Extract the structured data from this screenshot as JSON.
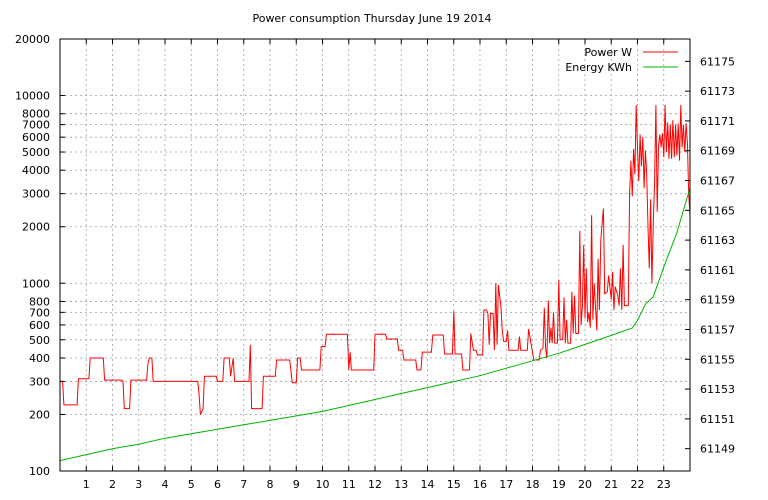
{
  "chart_data": {
    "type": "line",
    "title": "Power consumption Thursday June 19 2014",
    "xlabel": "",
    "ylabel": "",
    "grid": true,
    "legend_position": "top-right",
    "x_axis": {
      "range": [
        0,
        24
      ],
      "ticks": [
        1,
        2,
        3,
        4,
        5,
        6,
        7,
        8,
        9,
        10,
        11,
        12,
        13,
        14,
        15,
        16,
        17,
        18,
        19,
        20,
        21,
        22,
        23
      ]
    },
    "y_left": {
      "scale": "log",
      "range": [
        100,
        20000
      ],
      "ticks": [
        100,
        200,
        300,
        400,
        500,
        600,
        700,
        800,
        1000,
        2000,
        3000,
        4000,
        5000,
        6000,
        7000,
        8000,
        10000,
        20000
      ]
    },
    "y_right": {
      "scale": "linear",
      "range": [
        61147.5,
        61176.5
      ],
      "ticks": [
        61149,
        61151,
        61153,
        61155,
        61157,
        61159,
        61161,
        61163,
        61165,
        61167,
        61169,
        61171,
        61173,
        61175
      ]
    },
    "series": [
      {
        "name": "Power W",
        "axis": "left",
        "color": "#ff0000",
        "points": [
          [
            0,
            300
          ],
          [
            0.1,
            300
          ],
          [
            0.15,
            225
          ],
          [
            0.65,
            225
          ],
          [
            0.7,
            310
          ],
          [
            1.1,
            310
          ],
          [
            1.15,
            400
          ],
          [
            1.65,
            400
          ],
          [
            1.7,
            305
          ],
          [
            2.35,
            305
          ],
          [
            2.4,
            300
          ],
          [
            2.45,
            215
          ],
          [
            2.65,
            215
          ],
          [
            2.7,
            305
          ],
          [
            3.3,
            305
          ],
          [
            3.35,
            370
          ],
          [
            3.4,
            400
          ],
          [
            3.5,
            400
          ],
          [
            3.55,
            300
          ],
          [
            5.25,
            300
          ],
          [
            5.3,
            255
          ],
          [
            5.35,
            200
          ],
          [
            5.45,
            215
          ],
          [
            5.5,
            320
          ],
          [
            5.95,
            320
          ],
          [
            6.0,
            300
          ],
          [
            6.2,
            300
          ],
          [
            6.25,
            400
          ],
          [
            6.45,
            400
          ],
          [
            6.5,
            320
          ],
          [
            6.6,
            400
          ],
          [
            6.65,
            300
          ],
          [
            7.2,
            300
          ],
          [
            7.25,
            470
          ],
          [
            7.3,
            215
          ],
          [
            7.7,
            215
          ],
          [
            7.75,
            320
          ],
          [
            8.2,
            320
          ],
          [
            8.25,
            390
          ],
          [
            8.75,
            390
          ],
          [
            8.8,
            340
          ],
          [
            8.85,
            295
          ],
          [
            9.0,
            295
          ],
          [
            9.05,
            400
          ],
          [
            9.15,
            400
          ],
          [
            9.2,
            345
          ],
          [
            9.9,
            345
          ],
          [
            9.95,
            460
          ],
          [
            10.1,
            460
          ],
          [
            10.15,
            535
          ],
          [
            10.95,
            535
          ],
          [
            11.0,
            345
          ],
          [
            11.05,
            430
          ],
          [
            11.1,
            345
          ],
          [
            11.95,
            345
          ],
          [
            12.0,
            535
          ],
          [
            12.4,
            535
          ],
          [
            12.45,
            505
          ],
          [
            12.85,
            505
          ],
          [
            12.9,
            440
          ],
          [
            13.05,
            440
          ],
          [
            13.1,
            390
          ],
          [
            13.55,
            390
          ],
          [
            13.6,
            345
          ],
          [
            13.75,
            345
          ],
          [
            13.8,
            430
          ],
          [
            14.15,
            430
          ],
          [
            14.2,
            530
          ],
          [
            14.6,
            530
          ],
          [
            14.65,
            420
          ],
          [
            14.95,
            420
          ],
          [
            15.0,
            710
          ],
          [
            15.05,
            420
          ],
          [
            15.3,
            420
          ],
          [
            15.35,
            345
          ],
          [
            15.6,
            345
          ],
          [
            15.65,
            540
          ],
          [
            15.75,
            440
          ],
          [
            15.85,
            440
          ],
          [
            15.9,
            415
          ],
          [
            16.1,
            415
          ],
          [
            16.15,
            720
          ],
          [
            16.25,
            720
          ],
          [
            16.3,
            690
          ],
          [
            16.35,
            470
          ],
          [
            16.4,
            690
          ],
          [
            16.5,
            690
          ],
          [
            16.55,
            440
          ],
          [
            16.6,
            1000
          ],
          [
            16.65,
            470
          ],
          [
            16.7,
            980
          ],
          [
            16.8,
            740
          ],
          [
            16.85,
            560
          ],
          [
            16.9,
            490
          ],
          [
            17.0,
            490
          ],
          [
            17.05,
            560
          ],
          [
            17.1,
            440
          ],
          [
            17.45,
            440
          ],
          [
            17.5,
            520
          ],
          [
            17.55,
            440
          ],
          [
            17.8,
            440
          ],
          [
            17.85,
            570
          ],
          [
            17.95,
            470
          ],
          [
            18.05,
            390
          ],
          [
            18.25,
            390
          ],
          [
            18.3,
            440
          ],
          [
            18.4,
            450
          ],
          [
            18.45,
            740
          ],
          [
            18.5,
            450
          ],
          [
            18.55,
            400
          ],
          [
            18.6,
            810
          ],
          [
            18.65,
            480
          ],
          [
            18.7,
            580
          ],
          [
            18.75,
            480
          ],
          [
            18.8,
            700
          ],
          [
            18.85,
            480
          ],
          [
            18.95,
            480
          ],
          [
            19.0,
            1040
          ],
          [
            19.05,
            500
          ],
          [
            19.15,
            500
          ],
          [
            19.2,
            840
          ],
          [
            19.25,
            480
          ],
          [
            19.3,
            640
          ],
          [
            19.35,
            480
          ],
          [
            19.45,
            480
          ],
          [
            19.5,
            900
          ],
          [
            19.55,
            540
          ],
          [
            19.6,
            860
          ],
          [
            19.65,
            540
          ],
          [
            19.75,
            540
          ],
          [
            19.8,
            1900
          ],
          [
            19.85,
            600
          ],
          [
            19.9,
            760
          ],
          [
            19.95,
            1600
          ],
          [
            20.0,
            650
          ],
          [
            20.05,
            1200
          ],
          [
            20.1,
            620
          ],
          [
            20.15,
            700
          ],
          [
            20.2,
            580
          ],
          [
            20.25,
            2300
          ],
          [
            20.3,
            640
          ],
          [
            20.35,
            1000
          ],
          [
            20.45,
            560
          ],
          [
            20.5,
            1350
          ],
          [
            20.55,
            720
          ],
          [
            20.6,
            1700
          ],
          [
            20.7,
            2500
          ],
          [
            20.75,
            880
          ],
          [
            20.85,
            900
          ],
          [
            20.9,
            1100
          ],
          [
            21.0,
            820
          ],
          [
            21.05,
            1150
          ],
          [
            21.1,
            720
          ],
          [
            21.15,
            960
          ],
          [
            21.25,
            860
          ],
          [
            21.3,
            760
          ],
          [
            21.35,
            1200
          ],
          [
            21.4,
            720
          ],
          [
            21.45,
            1600
          ],
          [
            21.5,
            760
          ],
          [
            21.65,
            760
          ],
          [
            21.7,
            3000
          ],
          [
            21.75,
            4500
          ],
          [
            21.8,
            2900
          ],
          [
            21.85,
            5200
          ],
          [
            21.9,
            3800
          ],
          [
            21.95,
            8900
          ],
          [
            22.0,
            5200
          ],
          [
            22.05,
            3500
          ],
          [
            22.1,
            6200
          ],
          [
            22.15,
            4200
          ],
          [
            22.2,
            6000
          ],
          [
            22.25,
            3200
          ],
          [
            22.3,
            5100
          ],
          [
            22.35,
            3800
          ],
          [
            22.4,
            2000
          ],
          [
            22.45,
            1200
          ],
          [
            22.5,
            2800
          ],
          [
            22.55,
            1000
          ],
          [
            22.6,
            2100
          ],
          [
            22.65,
            3500
          ],
          [
            22.7,
            8900
          ],
          [
            22.75,
            2400
          ],
          [
            22.8,
            5300
          ],
          [
            22.85,
            6200
          ],
          [
            22.9,
            5300
          ],
          [
            22.95,
            6300
          ],
          [
            23.0,
            4700
          ],
          [
            23.05,
            8900
          ],
          [
            23.1,
            5000
          ],
          [
            23.15,
            7200
          ],
          [
            23.2,
            4600
          ],
          [
            23.25,
            7000
          ],
          [
            23.3,
            4600
          ],
          [
            23.35,
            7400
          ],
          [
            23.4,
            4700
          ],
          [
            23.45,
            7000
          ],
          [
            23.5,
            4800
          ],
          [
            23.55,
            7100
          ],
          [
            23.6,
            4500
          ],
          [
            23.65,
            8900
          ],
          [
            23.7,
            5300
          ],
          [
            23.75,
            7000
          ],
          [
            23.8,
            5000
          ],
          [
            23.85,
            7100
          ],
          [
            23.9,
            5600
          ],
          [
            23.95,
            3000
          ],
          [
            24.0,
            2300
          ]
        ]
      },
      {
        "name": "Energy KWh",
        "axis": "right",
        "color": "#00b400",
        "points": [
          [
            0,
            61148.2
          ],
          [
            1,
            61148.6
          ],
          [
            2,
            61149.0
          ],
          [
            3,
            61149.3
          ],
          [
            4,
            61149.7
          ],
          [
            5,
            61150.0
          ],
          [
            6,
            61150.3
          ],
          [
            7,
            61150.6
          ],
          [
            8,
            61150.9
          ],
          [
            9,
            61151.2
          ],
          [
            10,
            61151.5
          ],
          [
            11,
            61151.9
          ],
          [
            12,
            61152.3
          ],
          [
            13,
            61152.7
          ],
          [
            14,
            61153.1
          ],
          [
            15,
            61153.5
          ],
          [
            16,
            61153.9
          ],
          [
            17,
            61154.4
          ],
          [
            18,
            61154.9
          ],
          [
            19,
            61155.4
          ],
          [
            20,
            61156.0
          ],
          [
            21,
            61156.6
          ],
          [
            21.8,
            61157.1
          ],
          [
            22,
            61157.6
          ],
          [
            22.3,
            61158.7
          ],
          [
            22.6,
            61159.2
          ],
          [
            23,
            61161.2
          ],
          [
            23.5,
            61163.5
          ],
          [
            24,
            61166.5
          ]
        ]
      }
    ]
  }
}
